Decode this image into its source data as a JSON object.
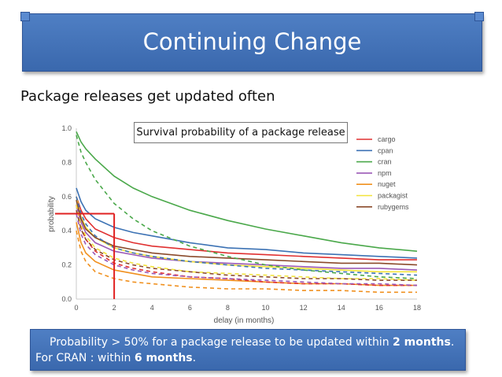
{
  "slide": {
    "title": "Continuing Change",
    "subtitle": "Package releases get updated often",
    "note": {
      "line1_prefix": "Probability > 50% for a package release to be updated within ",
      "line1_bold": "2 months",
      "line1_suffix": ".",
      "line2_prefix": "For CRAN : within ",
      "line2_bold": "6 months",
      "line2_suffix": "."
    }
  },
  "chart_data": {
    "type": "line",
    "title": "Survival probability of a package release",
    "xlabel": "delay (in months)",
    "ylabel": "probability",
    "xlim": [
      0,
      18
    ],
    "ylim": [
      0,
      1
    ],
    "xticks": [
      "0",
      "2",
      "4",
      "6",
      "8",
      "10",
      "12",
      "14",
      "16",
      "18"
    ],
    "yticks": [
      "0.0",
      "0.2",
      "0.4",
      "0.6",
      "0.8",
      "1.0"
    ],
    "legend_position": "top-right",
    "grid": false,
    "x": [
      0,
      0.25,
      0.5,
      1,
      2,
      3,
      4,
      6,
      8,
      10,
      12,
      14,
      16,
      18
    ],
    "series": [
      {
        "name": "cargo",
        "color": "#e03030",
        "style": "solid",
        "values": [
          0.6,
          0.52,
          0.47,
          0.41,
          0.36,
          0.33,
          0.31,
          0.29,
          0.27,
          0.26,
          0.25,
          0.24,
          0.23,
          0.23
        ]
      },
      {
        "name": "cpan",
        "color": "#3c72b4",
        "style": "solid",
        "values": [
          0.65,
          0.57,
          0.52,
          0.47,
          0.42,
          0.39,
          0.37,
          0.33,
          0.3,
          0.29,
          0.27,
          0.26,
          0.25,
          0.24
        ]
      },
      {
        "name": "cran",
        "color": "#4aa84a",
        "style": "solid",
        "values": [
          0.98,
          0.92,
          0.88,
          0.82,
          0.72,
          0.65,
          0.6,
          0.52,
          0.46,
          0.41,
          0.37,
          0.33,
          0.3,
          0.28
        ]
      },
      {
        "name": "npm",
        "color": "#9b59b6",
        "style": "solid",
        "values": [
          0.55,
          0.45,
          0.39,
          0.33,
          0.28,
          0.26,
          0.24,
          0.22,
          0.21,
          0.2,
          0.19,
          0.18,
          0.18,
          0.17
        ]
      },
      {
        "name": "nuget",
        "color": "#f0901e",
        "style": "solid",
        "values": [
          0.45,
          0.33,
          0.27,
          0.22,
          0.17,
          0.15,
          0.13,
          0.12,
          0.11,
          0.1,
          0.09,
          0.09,
          0.08,
          0.08
        ]
      },
      {
        "name": "packagist",
        "color": "#f2e33a",
        "style": "solid",
        "values": [
          0.6,
          0.48,
          0.42,
          0.36,
          0.3,
          0.27,
          0.25,
          0.22,
          0.2,
          0.19,
          0.18,
          0.17,
          0.16,
          0.16
        ]
      },
      {
        "name": "rubygems",
        "color": "#8b4a2b",
        "style": "solid",
        "values": [
          0.58,
          0.47,
          0.41,
          0.36,
          0.31,
          0.29,
          0.27,
          0.25,
          0.24,
          0.23,
          0.22,
          0.21,
          0.21,
          0.2
        ]
      },
      {
        "color": "#e03030",
        "style": "dashed",
        "values": [
          0.55,
          0.42,
          0.35,
          0.28,
          0.21,
          0.18,
          0.16,
          0.13,
          0.12,
          0.1,
          0.09,
          0.09,
          0.08,
          0.08
        ]
      },
      {
        "color": "#3c72b4",
        "style": "dashed",
        "values": [
          0.6,
          0.5,
          0.44,
          0.37,
          0.3,
          0.27,
          0.25,
          0.22,
          0.2,
          0.18,
          0.17,
          0.16,
          0.15,
          0.14
        ]
      },
      {
        "color": "#4aa84a",
        "style": "dashed",
        "values": [
          0.96,
          0.86,
          0.8,
          0.7,
          0.56,
          0.47,
          0.4,
          0.31,
          0.25,
          0.2,
          0.17,
          0.15,
          0.13,
          0.12
        ]
      },
      {
        "color": "#9b59b6",
        "style": "dashed",
        "values": [
          0.5,
          0.38,
          0.32,
          0.26,
          0.2,
          0.17,
          0.15,
          0.13,
          0.12,
          0.11,
          0.1,
          0.09,
          0.09,
          0.08
        ]
      },
      {
        "color": "#f0901e",
        "style": "dashed",
        "values": [
          0.4,
          0.28,
          0.22,
          0.16,
          0.12,
          0.1,
          0.09,
          0.07,
          0.06,
          0.06,
          0.05,
          0.05,
          0.04,
          0.04
        ]
      },
      {
        "color": "#f2e33a",
        "style": "dashed",
        "values": [
          0.55,
          0.43,
          0.37,
          0.3,
          0.24,
          0.21,
          0.19,
          0.16,
          0.15,
          0.14,
          0.13,
          0.12,
          0.12,
          0.11
        ]
      },
      {
        "color": "#8b4a2b",
        "style": "dashed",
        "values": [
          0.52,
          0.41,
          0.35,
          0.29,
          0.23,
          0.2,
          0.18,
          0.16,
          0.14,
          0.13,
          0.12,
          0.12,
          0.11,
          0.11
        ]
      }
    ],
    "annotation": {
      "color": "#e02020",
      "x": 2,
      "y": 0.5
    }
  }
}
